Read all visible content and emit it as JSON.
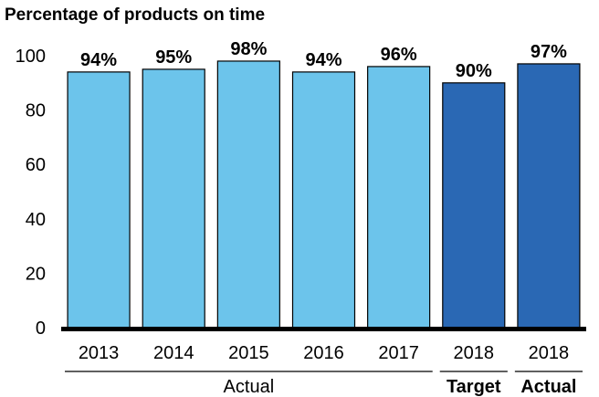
{
  "chart_data": {
    "type": "bar",
    "title": "Percentage of products on time",
    "xlabel": "",
    "ylabel": "",
    "ylim": [
      0,
      100
    ],
    "yticks": [
      0,
      20,
      40,
      60,
      80,
      100
    ],
    "categories": [
      "2013",
      "2014",
      "2015",
      "2016",
      "2017",
      "2018",
      "2018"
    ],
    "values": [
      94,
      95,
      98,
      94,
      96,
      90,
      97
    ],
    "value_labels": [
      "94%",
      "95%",
      "98%",
      "94%",
      "96%",
      "90%",
      "97%"
    ],
    "groups": [
      {
        "label": "Actual",
        "start": 0,
        "end": 4,
        "bold": false,
        "color": "#6cc4eb"
      },
      {
        "label": "Target",
        "start": 5,
        "end": 5,
        "bold": true,
        "color": "#2a68b4"
      },
      {
        "label": "Actual",
        "start": 6,
        "end": 6,
        "bold": true,
        "color": "#2a68b4"
      }
    ],
    "grid": false,
    "legend": "none"
  }
}
